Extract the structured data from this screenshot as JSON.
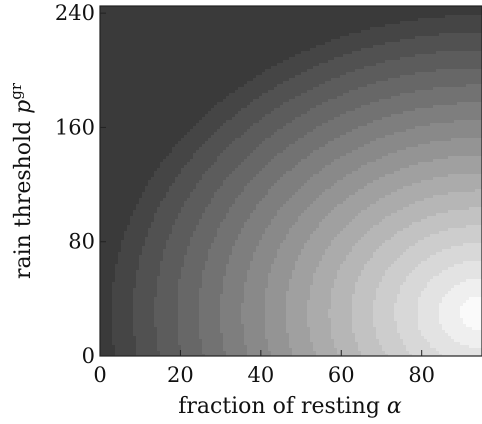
{
  "chart_data": {
    "type": "heatmap",
    "title": "",
    "xlabel": {
      "text": "fraction of resting ",
      "symbol": "α"
    },
    "ylabel": {
      "text": "rain threshold ",
      "symbol": "p",
      "superscript": "gr"
    },
    "xlim": [
      0,
      95
    ],
    "ylim": [
      0,
      245
    ],
    "x_ticks": [
      0,
      20,
      40,
      60,
      80
    ],
    "y_ticks": [
      0,
      80,
      160,
      240
    ],
    "colorscale": "grayscale, dark = low, light = high",
    "legend": "none",
    "grid": false,
    "contour_levels": 18,
    "peak": {
      "x": 95,
      "y": 30
    },
    "approx_field": "value increases toward high α and low-to-mid p^gr (bright region at lower right), decreasing to dark at upper left"
  }
}
